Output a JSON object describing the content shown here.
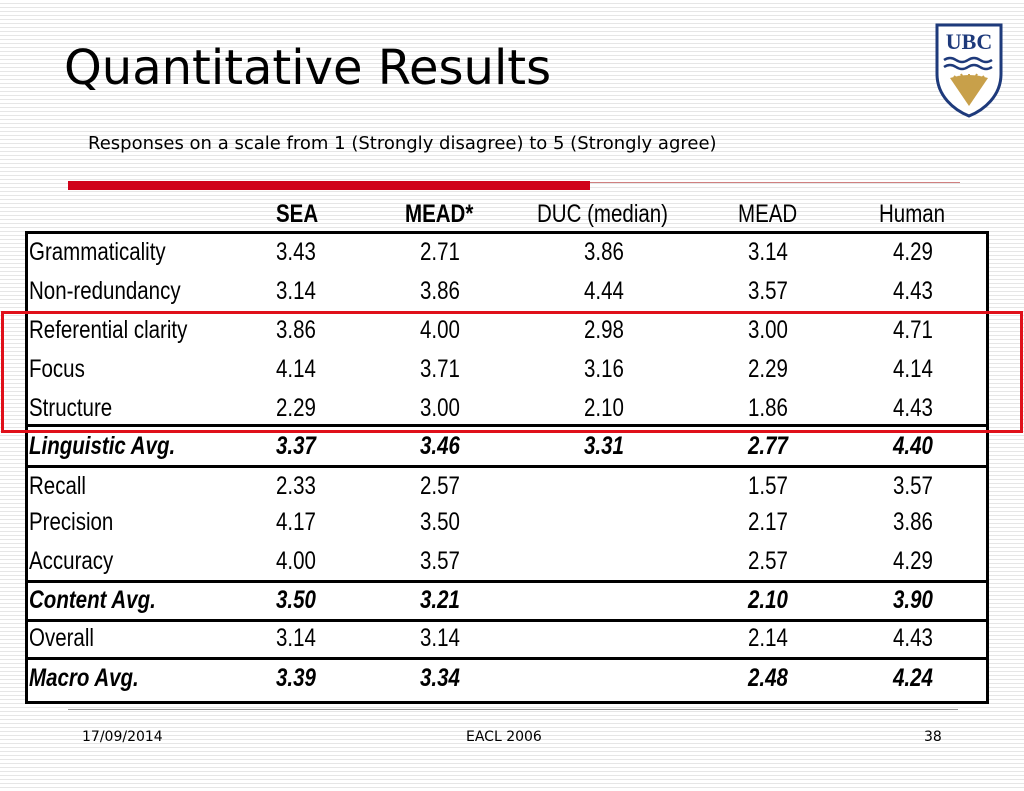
{
  "slide": {
    "title": "Quantitative Results",
    "subtitle": "Responses on a scale from 1 (Strongly disagree) to 5 (Strongly agree)",
    "logo_text": "UBC"
  },
  "table": {
    "headers": [
      "SEA",
      "MEAD*",
      "DUC (median)",
      "MEAD",
      "Human"
    ],
    "rows": [
      {
        "label": "Grammaticality",
        "values": [
          "3.43",
          "2.71",
          "3.86",
          "3.14",
          "4.29"
        ],
        "style": "normal"
      },
      {
        "label": "Non-redundancy",
        "values": [
          "3.14",
          "3.86",
          "4.44",
          "3.57",
          "4.43"
        ],
        "style": "normal"
      },
      {
        "label": "Referential clarity",
        "values": [
          "3.86",
          "4.00",
          "2.98",
          "3.00",
          "4.71"
        ],
        "style": "normal"
      },
      {
        "label": "Focus",
        "values": [
          "4.14",
          "3.71",
          "3.16",
          "2.29",
          "4.14"
        ],
        "style": "normal"
      },
      {
        "label": "Structure",
        "values": [
          "2.29",
          "3.00",
          "2.10",
          "1.86",
          "4.43"
        ],
        "style": "normal"
      },
      {
        "label": "Linguistic Avg.",
        "values": [
          "3.37",
          "3.46",
          "3.31",
          "2.77",
          "4.40"
        ],
        "style": "avg"
      },
      {
        "label": "Recall",
        "values": [
          "2.33",
          "2.57",
          "",
          "1.57",
          "3.57"
        ],
        "style": "normal"
      },
      {
        "label": "Precision",
        "values": [
          "4.17",
          "3.50",
          "",
          "2.17",
          "3.86"
        ],
        "style": "normal"
      },
      {
        "label": "Accuracy",
        "values": [
          "4.00",
          "3.57",
          "",
          "2.57",
          "4.29"
        ],
        "style": "normal"
      },
      {
        "label": "Content Avg.",
        "values": [
          "3.50",
          "3.21",
          "",
          "2.10",
          "3.90"
        ],
        "style": "avg"
      },
      {
        "label": "Overall",
        "values": [
          "3.14",
          "3.14",
          "",
          "2.14",
          "4.43"
        ],
        "style": "normal"
      },
      {
        "label": "Macro Avg.",
        "values": [
          "3.39",
          "3.34",
          "",
          "2.48",
          "4.24"
        ],
        "style": "avg"
      }
    ]
  },
  "footer": {
    "date": "17/09/2014",
    "venue": "EACL 2006",
    "page": "38"
  },
  "colors": {
    "accent": "#d0021b",
    "highlight": "#e0101a",
    "logo_blue": "#1e3a7b",
    "logo_gold": "#c8a04a"
  }
}
